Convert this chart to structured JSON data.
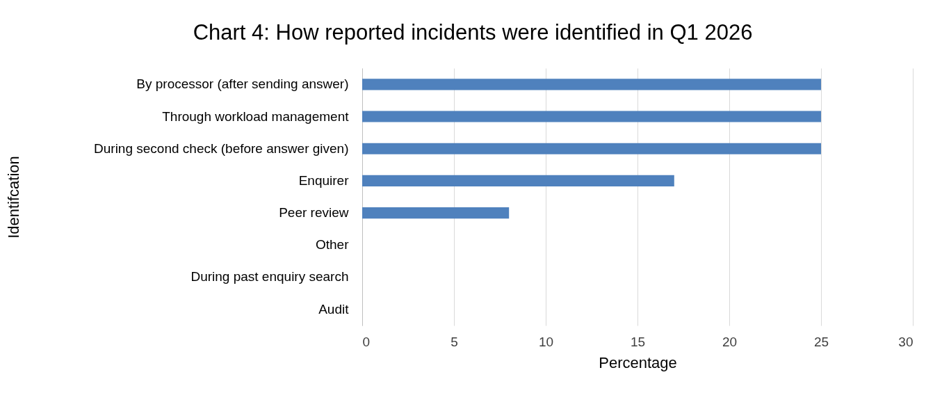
{
  "chart_data": {
    "type": "bar",
    "orientation": "horizontal",
    "title": "Chart 4: How reported incidents were identified in Q1 2026",
    "xlabel": "Percentage",
    "ylabel": "Identifcation",
    "categories": [
      "By processor (after sending answer)",
      "Through workload management",
      "During second check (before answer given)",
      "Enquirer",
      "Peer review",
      "Other",
      "During past enquiry search",
      "Audit"
    ],
    "values": [
      25,
      25,
      25,
      17,
      8,
      0,
      0,
      0
    ],
    "color": "#4f81bd",
    "xlim": [
      0,
      30
    ],
    "xticks": [
      0,
      5,
      10,
      15,
      20,
      25,
      30
    ],
    "grid": "x"
  }
}
